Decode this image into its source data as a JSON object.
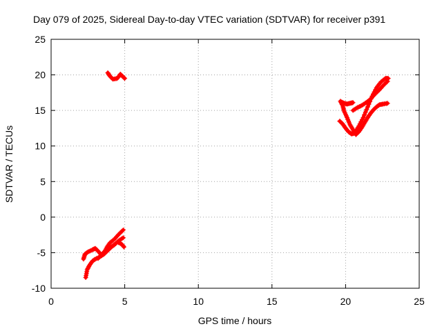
{
  "chart_data": {
    "type": "scatter",
    "title": "Day 079 of 2025, Sidereal Day-to-day VTEC variation (SDTVAR) for receiver p391",
    "xlabel": "GPS time / hours",
    "ylabel": "SDTVAR / TECUs",
    "xlim": [
      0,
      25
    ],
    "ylim": [
      -10,
      25
    ],
    "xticks": [
      "0",
      "5",
      "10",
      "15",
      "20",
      "25"
    ],
    "yticks": [
      "-10",
      "-5",
      "0",
      "5",
      "10",
      "15",
      "20",
      "25"
    ],
    "grid": true,
    "color": "#ff0000",
    "series": [
      {
        "segments": [
          [
            [
              3.85,
              20.3
            ],
            [
              4.0,
              19.8
            ],
            [
              4.2,
              19.4
            ],
            [
              4.5,
              19.5
            ],
            [
              4.7,
              20.1
            ],
            [
              4.85,
              19.8
            ],
            [
              5.0,
              19.5
            ]
          ],
          [
            [
              2.35,
              -8.5
            ],
            [
              2.45,
              -7.4
            ],
            [
              2.6,
              -6.8
            ],
            [
              2.8,
              -6.2
            ],
            [
              3.0,
              -5.9
            ],
            [
              3.3,
              -5.6
            ],
            [
              3.6,
              -5.2
            ],
            [
              3.9,
              -4.6
            ],
            [
              4.2,
              -4.0
            ],
            [
              4.5,
              -3.5
            ],
            [
              4.8,
              -3.8
            ],
            [
              4.95,
              -4.2
            ]
          ],
          [
            [
              2.2,
              -5.9
            ],
            [
              2.3,
              -5.2
            ],
            [
              2.5,
              -4.9
            ],
            [
              2.8,
              -4.6
            ],
            [
              3.0,
              -4.4
            ],
            [
              3.2,
              -4.8
            ],
            [
              3.4,
              -5.3
            ],
            [
              3.6,
              -5.0
            ],
            [
              3.8,
              -4.2
            ],
            [
              4.0,
              -3.6
            ],
            [
              4.3,
              -3.1
            ],
            [
              4.6,
              -2.4
            ],
            [
              4.9,
              -1.8
            ]
          ],
          [
            [
              3.2,
              -5.8
            ],
            [
              3.5,
              -5.1
            ],
            [
              3.7,
              -4.7
            ],
            [
              4.0,
              -4.3
            ],
            [
              4.3,
              -3.9
            ],
            [
              4.6,
              -3.3
            ],
            [
              4.9,
              -2.9
            ]
          ],
          [
            [
              19.65,
              16.3
            ],
            [
              19.8,
              15.7
            ],
            [
              19.9,
              14.9
            ],
            [
              20.1,
              14.0
            ],
            [
              20.3,
              13.0
            ],
            [
              20.5,
              12.3
            ],
            [
              20.7,
              11.6
            ],
            [
              20.9,
              12.0
            ],
            [
              21.1,
              12.6
            ],
            [
              21.3,
              13.3
            ],
            [
              21.5,
              14.0
            ],
            [
              21.7,
              14.6
            ],
            [
              21.9,
              15.1
            ],
            [
              22.1,
              15.5
            ],
            [
              22.3,
              15.8
            ],
            [
              22.55,
              15.9
            ],
            [
              22.85,
              16.0
            ]
          ],
          [
            [
              19.6,
              13.5
            ],
            [
              19.8,
              13.1
            ],
            [
              20.0,
              12.5
            ],
            [
              20.2,
              12.0
            ],
            [
              20.4,
              11.7
            ],
            [
              20.6,
              11.8
            ],
            [
              20.9,
              12.8
            ],
            [
              21.2,
              14.0
            ],
            [
              21.5,
              15.5
            ],
            [
              21.8,
              17.0
            ],
            [
              22.1,
              18.2
            ],
            [
              22.4,
              19.0
            ],
            [
              22.7,
              19.5
            ],
            [
              22.9,
              19.5
            ]
          ],
          [
            [
              20.5,
              15.0
            ],
            [
              20.8,
              15.4
            ],
            [
              21.1,
              15.7
            ],
            [
              21.4,
              16.1
            ],
            [
              21.7,
              16.6
            ],
            [
              22.0,
              17.3
            ],
            [
              22.3,
              17.9
            ],
            [
              22.6,
              18.6
            ],
            [
              22.85,
              19.1
            ]
          ],
          [
            [
              19.7,
              16.2
            ],
            [
              19.9,
              16.0
            ],
            [
              20.1,
              15.9
            ],
            [
              20.3,
              16.0
            ],
            [
              20.5,
              16.1
            ]
          ]
        ]
      }
    ]
  }
}
